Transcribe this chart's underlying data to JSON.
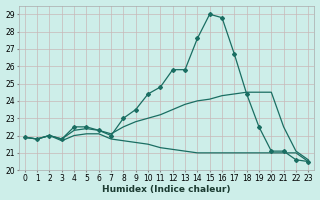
{
  "xlabel": "Humidex (Indice chaleur)",
  "bg_color": "#cdeee9",
  "grid_color": "#c8b8b8",
  "line_color": "#1a6e62",
  "xlim": [
    -0.5,
    23.5
  ],
  "ylim": [
    20.0,
    29.5
  ],
  "xticks": [
    0,
    1,
    2,
    3,
    4,
    5,
    6,
    7,
    8,
    9,
    10,
    11,
    12,
    13,
    14,
    15,
    16,
    17,
    18,
    19,
    20,
    21,
    22,
    23
  ],
  "yticks": [
    20,
    21,
    22,
    23,
    24,
    25,
    26,
    27,
    28,
    29
  ],
  "line1_x": [
    0,
    1,
    2,
    3,
    4,
    5,
    6,
    7,
    8,
    9,
    10,
    11,
    12,
    13,
    14,
    15,
    16,
    17,
    18,
    19,
    20,
    21,
    22,
    23
  ],
  "line1_y": [
    21.9,
    21.8,
    22.0,
    21.8,
    22.5,
    22.5,
    22.3,
    22.0,
    23.0,
    23.5,
    24.4,
    24.8,
    25.8,
    25.8,
    27.6,
    29.0,
    28.8,
    26.7,
    24.4,
    22.5,
    21.1,
    21.1,
    20.6,
    20.5
  ],
  "line2_x": [
    0,
    1,
    2,
    3,
    4,
    5,
    6,
    7,
    8,
    9,
    10,
    11,
    12,
    13,
    14,
    15,
    16,
    17,
    18,
    19,
    20,
    21,
    22,
    23
  ],
  "line2_y": [
    21.9,
    21.8,
    22.0,
    21.8,
    22.3,
    22.4,
    22.3,
    22.1,
    22.5,
    22.8,
    23.0,
    23.2,
    23.5,
    23.8,
    24.0,
    24.1,
    24.3,
    24.4,
    24.5,
    24.5,
    24.5,
    22.5,
    21.1,
    20.6
  ],
  "line3_x": [
    0,
    1,
    2,
    3,
    4,
    5,
    6,
    7,
    8,
    9,
    10,
    11,
    12,
    13,
    14,
    15,
    16,
    17,
    18,
    19,
    20,
    21,
    22,
    23
  ],
  "line3_y": [
    21.9,
    21.8,
    22.0,
    21.7,
    22.0,
    22.1,
    22.1,
    21.8,
    21.7,
    21.6,
    21.5,
    21.3,
    21.2,
    21.1,
    21.0,
    21.0,
    21.0,
    21.0,
    21.0,
    21.0,
    21.0,
    21.0,
    21.0,
    20.5
  ]
}
